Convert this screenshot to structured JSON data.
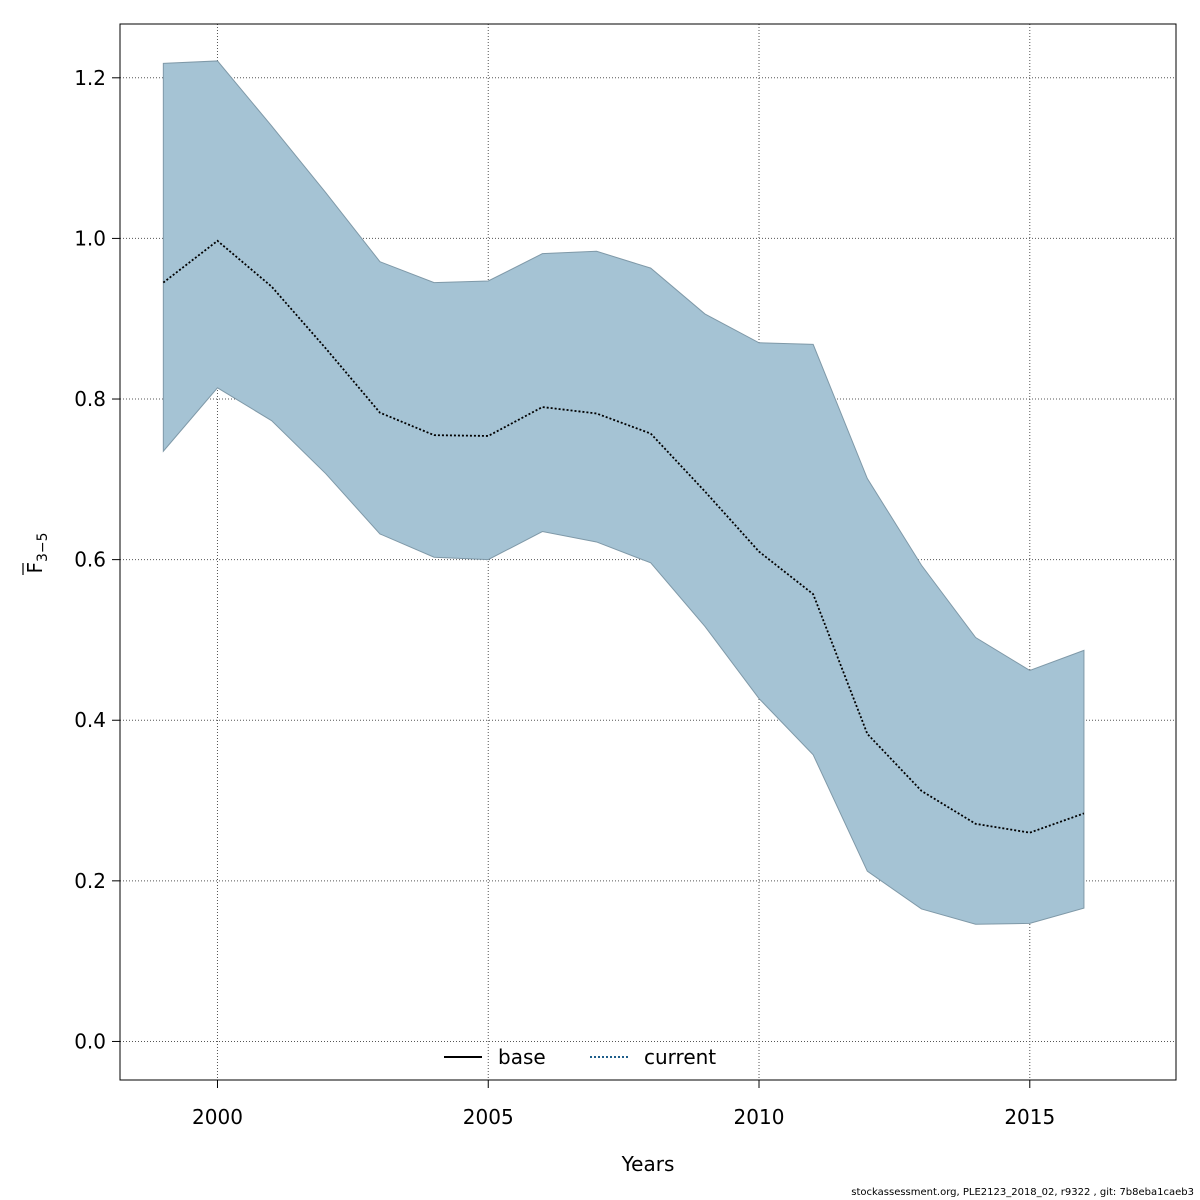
{
  "chart_data": {
    "type": "line",
    "xlabel": "Years",
    "ylabel": "F",
    "ylabel_subscript": "3−5",
    "xlim": [
      1998.2,
      2017.7
    ],
    "ylim": [
      -0.048,
      1.267
    ],
    "xticks": [
      2000,
      2005,
      2010,
      2015
    ],
    "yticks": [
      0.0,
      0.2,
      0.4,
      0.6,
      0.8,
      1.0,
      1.2
    ],
    "grid": true,
    "legend": {
      "placement": "bottom-center",
      "entries": [
        {
          "label": "base",
          "style": "solid"
        },
        {
          "label": "current",
          "style": "dotted"
        }
      ]
    },
    "x": [
      1999,
      2000,
      2001,
      2002,
      2003,
      2004,
      2005,
      2006,
      2007,
      2008,
      2009,
      2010,
      2011,
      2012,
      2013,
      2014,
      2015,
      2016
    ],
    "series": [
      {
        "name": "current",
        "style": "dotted",
        "values": [
          0.945,
          0.997,
          0.94,
          0.863,
          0.783,
          0.755,
          0.754,
          0.79,
          0.782,
          0.757,
          0.685,
          0.61,
          0.557,
          0.383,
          0.312,
          0.271,
          0.26,
          0.284
        ],
        "lower": [
          0.735,
          0.814,
          0.773,
          0.707,
          0.632,
          0.603,
          0.6,
          0.635,
          0.622,
          0.596,
          0.517,
          0.427,
          0.357,
          0.212,
          0.165,
          0.146,
          0.147,
          0.166
        ],
        "upper": [
          1.218,
          1.221,
          1.14,
          1.057,
          0.971,
          0.945,
          0.947,
          0.981,
          0.984,
          0.963,
          0.906,
          0.87,
          0.868,
          0.701,
          0.593,
          0.503,
          0.462,
          0.487
        ]
      }
    ]
  },
  "colors": {
    "band_fill": "#a5c3d4",
    "band_stroke": "#7f99a8",
    "line": "#000000",
    "legend_dotted": "#1f5f8b",
    "grid": "#555555"
  },
  "footer": "stockassessment.org, PLE2123_2018_02, r9322 , git: 7b8eba1caeb3"
}
